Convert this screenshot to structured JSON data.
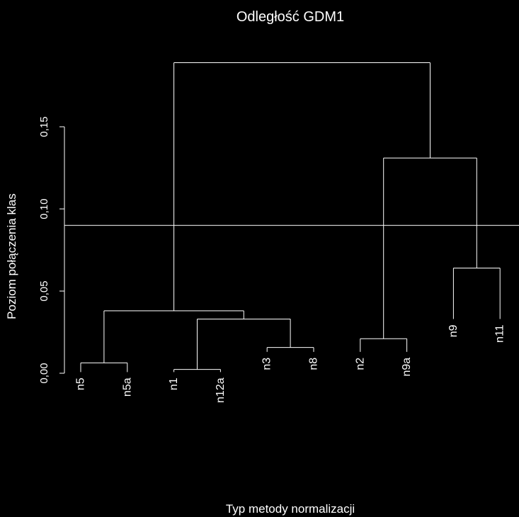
{
  "chart_data": {
    "type": "dendrogram",
    "title": "Odległość GDM1",
    "xlabel": "Typ metody normalizacji",
    "ylabel": "Poziom połączenia klas",
    "ylim": [
      0,
      0.19
    ],
    "yticks": [
      {
        "value": 0.0,
        "label": "0,00"
      },
      {
        "value": 0.05,
        "label": "0,05"
      },
      {
        "value": 0.1,
        "label": "0,10"
      },
      {
        "value": 0.15,
        "label": "0,15"
      }
    ],
    "leaves": [
      "n5",
      "n5a",
      "n1",
      "n12a",
      "n3",
      "n8",
      "n2",
      "n9a",
      "n9",
      "n11"
    ],
    "leaf_heights": [
      0.0007,
      0.0007,
      0.0007,
      0.0007,
      0.013,
      0.013,
      0.013,
      0.013,
      0.033,
      0.033
    ],
    "merges": [
      {
        "left": "L0",
        "right": "L1",
        "height": 0.0063
      },
      {
        "left": "L2",
        "right": "L3",
        "height": 0.0023
      },
      {
        "left": "L4",
        "right": "L5",
        "height": 0.0157
      },
      {
        "left": "L6",
        "right": "L7",
        "height": 0.021
      },
      {
        "left": "L8",
        "right": "L9",
        "height": 0.064
      },
      {
        "left": "M1",
        "right": "M2",
        "height": 0.033
      },
      {
        "left": "M0",
        "right": "M5",
        "height": 0.038
      },
      {
        "left": "M3",
        "right": "M4",
        "height": 0.131
      },
      {
        "left": "M6",
        "right": "M7",
        "height": 0.189
      }
    ],
    "cut_height": 0.09,
    "grid": false,
    "legend": false,
    "colors": {
      "background": "#000000",
      "foreground": "#ffffff"
    }
  }
}
